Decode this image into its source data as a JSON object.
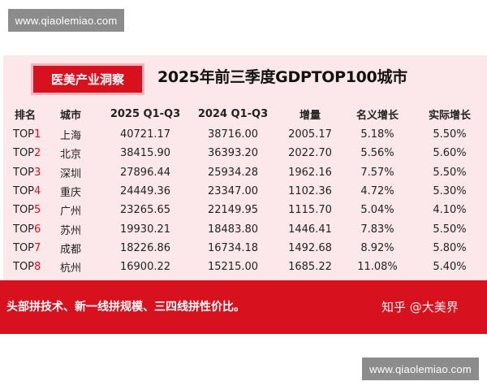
{
  "watermark": {
    "top": "www.qiaolemiao.com",
    "bottom": "www.qiaolemiao.com"
  },
  "header": {
    "tag": "医美产业洞察",
    "title": "2025年前三季度GDPTOP100城市"
  },
  "table": {
    "columns": [
      "排名",
      "城市",
      "2025 Q1-Q3",
      "2024 Q1-Q3",
      "增量",
      "名义增长",
      "实际增长"
    ],
    "rows": [
      {
        "rank_prefix": "TOP",
        "rank_num": "1",
        "city": "上海",
        "v2025": "40721.17",
        "v2024": "38716.00",
        "inc": "2005.17",
        "nominal": "5.18%",
        "real": "5.50%"
      },
      {
        "rank_prefix": "TOP",
        "rank_num": "2",
        "city": "北京",
        "v2025": "38415.90",
        "v2024": "36393.20",
        "inc": "2022.70",
        "nominal": "5.56%",
        "real": "5.60%"
      },
      {
        "rank_prefix": "TOP",
        "rank_num": "3",
        "city": "深圳",
        "v2025": "27896.44",
        "v2024": "25934.28",
        "inc": "1962.16",
        "nominal": "7.57%",
        "real": "5.50%"
      },
      {
        "rank_prefix": "TOP",
        "rank_num": "4",
        "city": "重庆",
        "v2025": "24449.36",
        "v2024": "23347.00",
        "inc": "1102.36",
        "nominal": "4.72%",
        "real": "5.30%"
      },
      {
        "rank_prefix": "TOP",
        "rank_num": "5",
        "city": "广州",
        "v2025": "23265.65",
        "v2024": "22149.95",
        "inc": "1115.70",
        "nominal": "5.04%",
        "real": "4.10%"
      },
      {
        "rank_prefix": "TOP",
        "rank_num": "6",
        "city": "苏州",
        "v2025": "19930.21",
        "v2024": "18483.80",
        "inc": "1446.41",
        "nominal": "7.83%",
        "real": "5.50%"
      },
      {
        "rank_prefix": "TOP",
        "rank_num": "7",
        "city": "成都",
        "v2025": "18226.86",
        "v2024": "16734.18",
        "inc": "1492.68",
        "nominal": "8.92%",
        "real": "5.80%"
      },
      {
        "rank_prefix": "TOP",
        "rank_num": "8",
        "city": "杭州",
        "v2025": "16900.22",
        "v2024": "15215.00",
        "inc": "1685.22",
        "nominal": "11.08%",
        "real": "5.40%"
      }
    ]
  },
  "footer": {
    "headline": "头部拼技术、新一线拼规模、三四线拼性价比。",
    "credit": "知乎 @大美界"
  },
  "colors": {
    "brand_red": "#d7111e",
    "card_bg": "#fce8ea"
  }
}
